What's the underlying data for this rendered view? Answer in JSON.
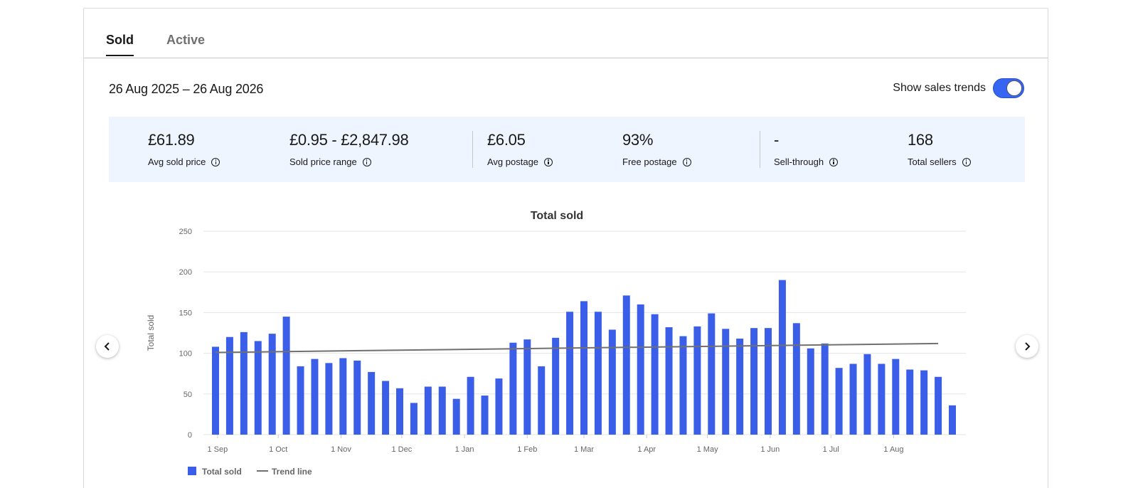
{
  "tabs": [
    {
      "label": "Sold",
      "active": true
    },
    {
      "label": "Active",
      "active": false
    }
  ],
  "date_range": "26 Aug 2025 – 26 Aug 2026",
  "sales_trends": {
    "label": "Show sales trends",
    "enabled": true
  },
  "stats": [
    {
      "value": "£61.89",
      "label": "Avg sold price"
    },
    {
      "value": "£0.95 - £2,847.98",
      "label": "Sold price range"
    },
    {
      "value": "£6.05",
      "label": "Avg postage"
    },
    {
      "value": "93%",
      "label": "Free postage"
    },
    {
      "value": "-",
      "label": "Sell-through"
    },
    {
      "value": "168",
      "label": "Total sellers"
    }
  ],
  "nav": {
    "prev_icon": "chevron-left-icon",
    "next_icon": "chevron-right-icon"
  },
  "chart_data": {
    "type": "bar",
    "title": "Total sold",
    "ylabel": "Total sold",
    "xlabel": "",
    "ylim": [
      0,
      250
    ],
    "yticks": [
      0,
      50,
      100,
      150,
      200,
      250
    ],
    "x": [
      "2025-08-31",
      "2025-09-07",
      "2025-09-14",
      "2025-09-21",
      "2025-09-28",
      "2025-10-05",
      "2025-10-12",
      "2025-10-19",
      "2025-10-26",
      "2025-11-02",
      "2025-11-09",
      "2025-11-16",
      "2025-11-23",
      "2025-11-30",
      "2025-12-07",
      "2025-12-14",
      "2025-12-21",
      "2025-12-28",
      "2026-01-04",
      "2026-01-11",
      "2026-01-18",
      "2026-01-25",
      "2026-02-01",
      "2026-02-08",
      "2026-02-15",
      "2026-02-22",
      "2026-03-01",
      "2026-03-08",
      "2026-03-15",
      "2026-03-22",
      "2026-03-29",
      "2026-04-05",
      "2026-04-12",
      "2026-04-19",
      "2026-04-26",
      "2026-05-03",
      "2026-05-10",
      "2026-05-17",
      "2026-05-24",
      "2026-05-31",
      "2026-06-07",
      "2026-06-14",
      "2026-06-21",
      "2026-06-28",
      "2026-07-05",
      "2026-07-12",
      "2026-07-19",
      "2026-07-26",
      "2026-08-02",
      "2026-08-09",
      "2026-08-16",
      "2026-08-23",
      "2026-08-30"
    ],
    "series": [
      {
        "name": "Total sold",
        "color": "#3b5ee8",
        "values": [
          108,
          120,
          126,
          115,
          124,
          145,
          84,
          93,
          88,
          94,
          91,
          77,
          66,
          57,
          39,
          59,
          59,
          44,
          71,
          48,
          69,
          113,
          117,
          84,
          119,
          151,
          164,
          151,
          129,
          171,
          160,
          148,
          132,
          121,
          133,
          149,
          130,
          118,
          131,
          131,
          190,
          137,
          106,
          112,
          82,
          87,
          99,
          87,
          93,
          80,
          79,
          71,
          36
        ]
      },
      {
        "name": "Trend line",
        "color": "#707070",
        "start": 101,
        "end": 112
      }
    ],
    "x_tick_labels": [
      {
        "label": "1 Sep",
        "date": "2025-09-01"
      },
      {
        "label": "1 Oct",
        "date": "2025-10-01"
      },
      {
        "label": "1 Nov",
        "date": "2025-11-01"
      },
      {
        "label": "1 Dec",
        "date": "2025-12-01"
      },
      {
        "label": "1 Jan",
        "date": "2026-01-01"
      },
      {
        "label": "1 Feb",
        "date": "2026-02-01"
      },
      {
        "label": "1 Mar",
        "date": "2026-03-01"
      },
      {
        "label": "1 Apr",
        "date": "2026-04-01"
      },
      {
        "label": "1 May",
        "date": "2026-05-01"
      },
      {
        "label": "1 Jun",
        "date": "2026-06-01"
      },
      {
        "label": "1 Jul",
        "date": "2026-07-01"
      },
      {
        "label": "1 Aug",
        "date": "2026-08-01"
      }
    ],
    "grid": true,
    "legend": "bottom-left"
  }
}
